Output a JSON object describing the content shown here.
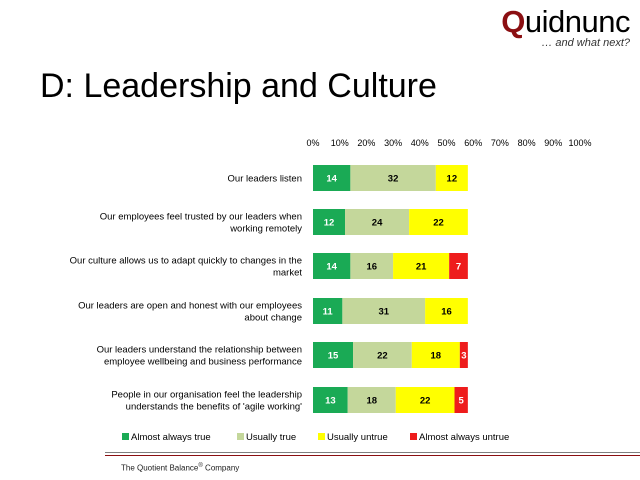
{
  "logo": {
    "initial": "Q",
    "rest": "uidnunc",
    "tagline": "… and what next?"
  },
  "slide_title": "D: Leadership and Culture",
  "footer": {
    "company": "The Quotient Balance",
    "reg_mark": "®",
    "suffix": " Company"
  },
  "chart_data": {
    "type": "bar",
    "orientation": "horizontal",
    "stacked": true,
    "xlim": [
      0,
      100
    ],
    "x_ticks": [
      "0%",
      "10%",
      "20%",
      "30%",
      "40%",
      "50%",
      "60%",
      "70%",
      "80%",
      "90%",
      "100%"
    ],
    "legend_position": "bottom",
    "categories": [
      [
        "Our leaders listen"
      ],
      [
        "Our employees feel trusted by our leaders when",
        "working remotely"
      ],
      [
        "Our culture allows us to adapt quickly to changes in the",
        "market"
      ],
      [
        "Our leaders are open and honest with our employees",
        "about change"
      ],
      [
        "Our leaders understand the relationship between",
        "employee wellbeing and business performance"
      ],
      [
        "People in our organisation feel the leadership",
        "understands the benefits of 'agile working'"
      ]
    ],
    "series": [
      {
        "name": "Almost always true",
        "color": "#1aaa55",
        "label_color": "#ffffff",
        "values": [
          14,
          12,
          14,
          11,
          15,
          13
        ]
      },
      {
        "name": "Usually true",
        "color": "#c4d79b",
        "label_color": "#000000",
        "values": [
          32,
          24,
          16,
          31,
          22,
          18
        ]
      },
      {
        "name": "Usually untrue",
        "color": "#ffff00",
        "label_color": "#000000",
        "values": [
          12,
          22,
          21,
          16,
          18,
          22
        ]
      },
      {
        "name": "Almost always untrue",
        "color": "#ee1c1c",
        "label_color": "#ffffff",
        "values": [
          0,
          0,
          7,
          0,
          3,
          5
        ]
      }
    ]
  }
}
